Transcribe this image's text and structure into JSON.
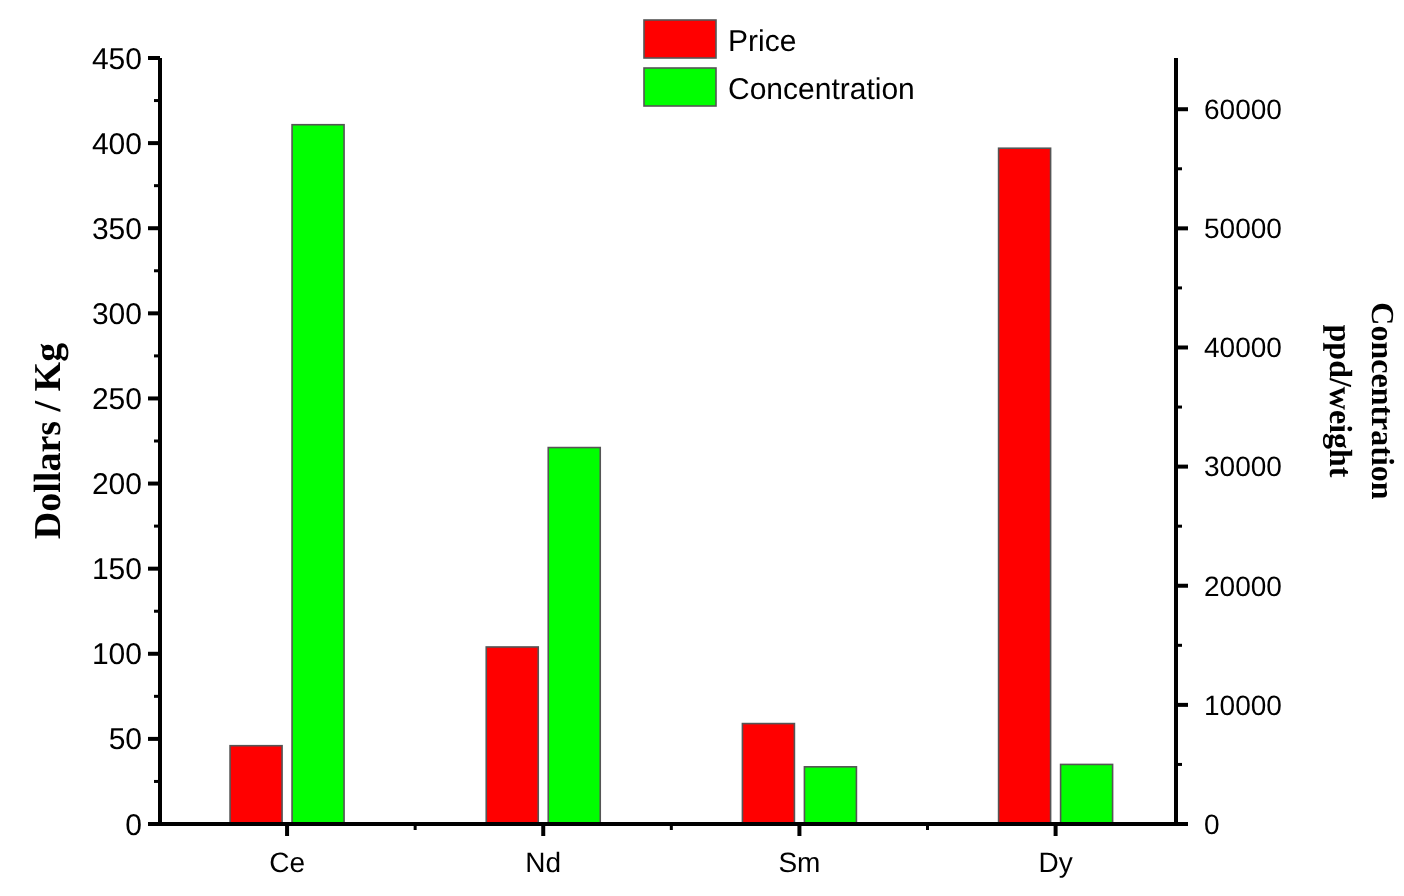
{
  "chart_data": {
    "type": "bar",
    "categories": [
      "Ce",
      "Nd",
      "Sm",
      "Dy"
    ],
    "ylabel": "Dollars / Kg",
    "y2label": "Concentration\nppd/weight",
    "series": [
      {
        "name": "Price",
        "color": "#ff0000",
        "values": [
          46,
          104,
          59,
          397
        ]
      },
      {
        "name": "Concentration",
        "color": "#00ff00",
        "axis": "y2",
        "values": [
          58700,
          31600,
          4800,
          5000
        ]
      }
    ],
    "ylim": [
      0,
      450
    ],
    "yticks": [
      0,
      50,
      100,
      150,
      200,
      250,
      300,
      350,
      400,
      450
    ],
    "y2lim": [
      0,
      64300
    ],
    "y2ticks": [
      0,
      10000,
      20000,
      30000,
      40000,
      50000,
      60000
    ],
    "legend": "top",
    "grid": false
  }
}
